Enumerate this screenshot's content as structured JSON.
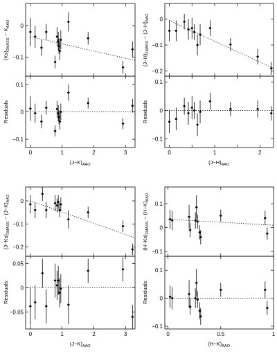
{
  "chart_data": [
    {
      "id": "p1",
      "type": "scatter",
      "xlabel": "(J−K)AAO",
      "ylabel_top": "(Ks)2MASS − KAAO",
      "ylabel_bottom": "Residuals",
      "xlim": [
        -0.15,
        3.3
      ],
      "xticks": [
        0,
        1,
        2,
        3
      ],
      "top": {
        "ylim": [
          -0.16,
          0.07
        ],
        "yticks": [
          0,
          -0.1
        ],
        "ytick_labels": [
          "0",
          "−0.1"
        ],
        "trend": [
          [
            0,
            -0.035
          ],
          [
            3.3,
            -0.11
          ]
        ],
        "points": [
          {
            "x": 0.0,
            "y": -0.02,
            "e": 0.045
          },
          {
            "x": 0.15,
            "y": -0.035,
            "e": 0.035
          },
          {
            "x": 0.35,
            "y": -0.07,
            "e": 0.025
          },
          {
            "x": 0.5,
            "y": -0.02,
            "e": 0.025
          },
          {
            "x": 0.78,
            "y": -0.115,
            "e": 0.02
          },
          {
            "x": 0.84,
            "y": -0.035,
            "e": 0.03
          },
          {
            "x": 0.88,
            "y": -0.05,
            "e": 0.03
          },
          {
            "x": 0.9,
            "y": -0.065,
            "e": 0.025
          },
          {
            "x": 0.93,
            "y": -0.08,
            "e": 0.03
          },
          {
            "x": 0.96,
            "y": -0.045,
            "e": 0.03
          },
          {
            "x": 1.2,
            "y": 0.012,
            "e": 0.03
          },
          {
            "x": 1.82,
            "y": -0.04,
            "e": 0.02
          },
          {
            "x": 2.92,
            "y": -0.132,
            "e": 0.02
          },
          {
            "x": 3.22,
            "y": -0.075,
            "e": 0.025
          }
        ]
      },
      "bottom": {
        "ylim": [
          -0.13,
          0.13
        ],
        "yticks": [
          0.1,
          0,
          -0.1
        ],
        "ytick_labels": [
          "0.1",
          "0",
          "−0.1"
        ],
        "points": [
          {
            "x": 0.0,
            "y": 0.012,
            "e": 0.045
          },
          {
            "x": 0.15,
            "y": -0.005,
            "e": 0.035
          },
          {
            "x": 0.35,
            "y": -0.035,
            "e": 0.025
          },
          {
            "x": 0.5,
            "y": 0.015,
            "e": 0.025
          },
          {
            "x": 0.78,
            "y": -0.07,
            "e": 0.02
          },
          {
            "x": 0.84,
            "y": 0.01,
            "e": 0.03
          },
          {
            "x": 0.88,
            "y": -0.005,
            "e": 0.03
          },
          {
            "x": 0.9,
            "y": -0.02,
            "e": 0.025
          },
          {
            "x": 0.93,
            "y": -0.035,
            "e": 0.03
          },
          {
            "x": 0.96,
            "y": 0.0,
            "e": 0.03
          },
          {
            "x": 1.2,
            "y": 0.07,
            "e": 0.03
          },
          {
            "x": 1.82,
            "y": 0.032,
            "e": 0.02
          },
          {
            "x": 2.92,
            "y": -0.043,
            "e": 0.02
          },
          {
            "x": 3.22,
            "y": 0.022,
            "e": 0.025
          }
        ]
      }
    },
    {
      "id": "p2",
      "type": "scatter",
      "xlabel": "(J−H)AAO",
      "ylabel_top": "(J−H)2MASS − (J−H)AAO",
      "ylabel_bottom": "Residuals",
      "xlim": [
        -0.1,
        2.3
      ],
      "xticks": [
        0,
        0.5,
        1,
        1.5,
        2
      ],
      "xtick_labels": [
        "0",
        "",
        "1",
        "",
        "2"
      ],
      "top": {
        "ylim": [
          -0.22,
          0.06
        ],
        "yticks": [
          0,
          -0.1,
          -0.2
        ],
        "ytick_labels": [
          "0",
          "−0.1",
          "−0.2"
        ],
        "trend": [
          [
            0,
            -0.005
          ],
          [
            2.3,
            -0.19
          ]
        ],
        "points": [
          {
            "x": 0.0,
            "y": -0.045,
            "e": 0.04
          },
          {
            "x": 0.15,
            "y": -0.045,
            "e": 0.04
          },
          {
            "x": 0.33,
            "y": -0.01,
            "e": 0.03
          },
          {
            "x": 0.42,
            "y": -0.04,
            "e": 0.04
          },
          {
            "x": 0.5,
            "y": -0.035,
            "e": 0.04
          },
          {
            "x": 0.55,
            "y": -0.05,
            "e": 0.03
          },
          {
            "x": 0.62,
            "y": -0.1,
            "e": 0.04
          },
          {
            "x": 0.68,
            "y": -0.06,
            "e": 0.04
          },
          {
            "x": 0.9,
            "y": -0.035,
            "e": 0.03
          },
          {
            "x": 1.35,
            "y": -0.098,
            "e": 0.025
          },
          {
            "x": 1.95,
            "y": -0.145,
            "e": 0.03
          },
          {
            "x": 2.25,
            "y": -0.19,
            "e": 0.025
          }
        ]
      },
      "bottom": {
        "ylim": [
          -0.13,
          0.12
        ],
        "yticks": [
          0.1,
          0,
          -0.1
        ],
        "ytick_labels": [
          "0.1",
          "0",
          "−0.1"
        ],
        "points": [
          {
            "x": 0.0,
            "y": -0.04,
            "e": 0.04
          },
          {
            "x": 0.15,
            "y": -0.03,
            "e": 0.04
          },
          {
            "x": 0.33,
            "y": 0.015,
            "e": 0.03
          },
          {
            "x": 0.42,
            "y": -0.01,
            "e": 0.04
          },
          {
            "x": 0.5,
            "y": 0.01,
            "e": 0.04
          },
          {
            "x": 0.55,
            "y": 0.0,
            "e": 0.03
          },
          {
            "x": 0.62,
            "y": -0.05,
            "e": 0.04
          },
          {
            "x": 0.68,
            "y": -0.005,
            "e": 0.04
          },
          {
            "x": 0.9,
            "y": 0.032,
            "e": 0.03
          },
          {
            "x": 1.35,
            "y": 0.005,
            "e": 0.025
          },
          {
            "x": 1.95,
            "y": 0.005,
            "e": 0.03
          },
          {
            "x": 2.25,
            "y": -0.01,
            "e": 0.025
          }
        ]
      }
    },
    {
      "id": "p3",
      "type": "scatter",
      "xlabel": "(J−K)AAO",
      "ylabel_top": "(J−Ks)2MASS − (J−K)AAO",
      "ylabel_bottom": "Residuals",
      "xlim": [
        -0.15,
        3.3
      ],
      "xticks": [
        0,
        1,
        2,
        3
      ],
      "top": {
        "ylim": [
          -0.24,
          0.06
        ],
        "yticks": [
          0,
          -0.1,
          -0.2
        ],
        "ytick_labels": [
          "0",
          "−0.1",
          "−0.2"
        ],
        "trend": [
          [
            0,
            0.0
          ],
          [
            3.3,
            -0.16
          ]
        ],
        "points": [
          {
            "x": 0.0,
            "y": -0.015,
            "e": 0.04
          },
          {
            "x": 0.15,
            "y": -0.04,
            "e": 0.035
          },
          {
            "x": 0.38,
            "y": 0.03,
            "e": 0.03
          },
          {
            "x": 0.5,
            "y": -0.04,
            "e": 0.035
          },
          {
            "x": 0.78,
            "y": -0.01,
            "e": 0.035
          },
          {
            "x": 0.84,
            "y": -0.02,
            "e": 0.03
          },
          {
            "x": 0.88,
            "y": -0.005,
            "e": 0.03
          },
          {
            "x": 0.92,
            "y": -0.04,
            "e": 0.03
          },
          {
            "x": 0.96,
            "y": -0.015,
            "e": 0.03
          },
          {
            "x": 1.2,
            "y": -0.08,
            "e": 0.04
          },
          {
            "x": 1.82,
            "y": -0.05,
            "e": 0.025
          },
          {
            "x": 2.92,
            "y": -0.11,
            "e": 0.025
          },
          {
            "x": 3.22,
            "y": -0.21,
            "e": 0.025
          }
        ]
      },
      "bottom": {
        "ylim": [
          -0.085,
          0.065
        ],
        "yticks": [
          0.05,
          0,
          -0.05
        ],
        "ytick_labels": [
          "0.05",
          "0",
          "−0.05"
        ],
        "points": [
          {
            "x": 0.0,
            "y": -0.038,
            "e": 0.04
          },
          {
            "x": 0.15,
            "y": -0.03,
            "e": 0.035
          },
          {
            "x": 0.38,
            "y": 0.03,
            "e": 0.03
          },
          {
            "x": 0.5,
            "y": -0.038,
            "e": 0.035
          },
          {
            "x": 0.78,
            "y": 0.015,
            "e": 0.035
          },
          {
            "x": 0.84,
            "y": 0.005,
            "e": 0.03
          },
          {
            "x": 0.88,
            "y": 0.015,
            "e": 0.03
          },
          {
            "x": 0.92,
            "y": -0.01,
            "e": 0.03
          },
          {
            "x": 0.96,
            "y": -0.002,
            "e": 0.03
          },
          {
            "x": 1.2,
            "y": -0.035,
            "e": 0.04
          },
          {
            "x": 1.82,
            "y": 0.035,
            "e": 0.025
          },
          {
            "x": 2.92,
            "y": 0.038,
            "e": 0.025
          },
          {
            "x": 3.22,
            "y": -0.06,
            "e": 0.025
          }
        ]
      }
    },
    {
      "id": "p4",
      "type": "scatter",
      "xlabel": "(H−K)AAO",
      "ylabel_top": "(H−Ks)2MASS − (H−K)AAO",
      "ylabel_bottom": "Residuals",
      "xlim": [
        -0.03,
        1.0
      ],
      "xticks": [
        0,
        0.5,
        1
      ],
      "xtick_labels": [
        "0",
        "0.5",
        "1"
      ],
      "top": {
        "ylim": [
          -0.12,
          0.17
        ],
        "yticks": [
          0.1,
          0,
          -0.1
        ],
        "ytick_labels": [
          "0.1",
          "0",
          "−0.1"
        ],
        "trend": [
          [
            0,
            0.035
          ],
          [
            1.0,
            0.01
          ]
        ],
        "points": [
          {
            "x": 0.02,
            "y": 0.035,
            "e": 0.04
          },
          {
            "x": 0.04,
            "y": 0.03,
            "e": 0.04
          },
          {
            "x": 0.2,
            "y": 0.045,
            "e": 0.05
          },
          {
            "x": 0.21,
            "y": -0.01,
            "e": 0.03
          },
          {
            "x": 0.26,
            "y": 0.03,
            "e": 0.035
          },
          {
            "x": 0.27,
            "y": 0.085,
            "e": 0.05
          },
          {
            "x": 0.28,
            "y": 0.025,
            "e": 0.03
          },
          {
            "x": 0.3,
            "y": -0.02,
            "e": 0.03
          },
          {
            "x": 0.31,
            "y": -0.04,
            "e": 0.03
          },
          {
            "x": 0.5,
            "y": 0.05,
            "e": 0.025
          },
          {
            "x": 0.92,
            "y": 0.04,
            "e": 0.03
          },
          {
            "x": 0.94,
            "y": -0.025,
            "e": 0.025
          }
        ]
      },
      "bottom": {
        "ylim": [
          -0.11,
          0.15
        ],
        "yticks": [
          0.1,
          0,
          -0.1
        ],
        "ytick_labels": [
          "0.1",
          "0",
          "−0.1"
        ],
        "points": [
          {
            "x": 0.02,
            "y": 0.005,
            "e": 0.04
          },
          {
            "x": 0.04,
            "y": 0.0,
            "e": 0.04
          },
          {
            "x": 0.2,
            "y": 0.015,
            "e": 0.05
          },
          {
            "x": 0.21,
            "y": -0.03,
            "e": 0.03
          },
          {
            "x": 0.26,
            "y": 0.0,
            "e": 0.035
          },
          {
            "x": 0.27,
            "y": 0.055,
            "e": 0.05
          },
          {
            "x": 0.28,
            "y": -0.005,
            "e": 0.03
          },
          {
            "x": 0.3,
            "y": -0.045,
            "e": 0.03
          },
          {
            "x": 0.31,
            "y": -0.065,
            "e": 0.03
          },
          {
            "x": 0.5,
            "y": 0.03,
            "e": 0.025
          },
          {
            "x": 0.92,
            "y": 0.03,
            "e": 0.03
          },
          {
            "x": 0.94,
            "y": -0.035,
            "e": 0.025
          }
        ]
      }
    }
  ]
}
